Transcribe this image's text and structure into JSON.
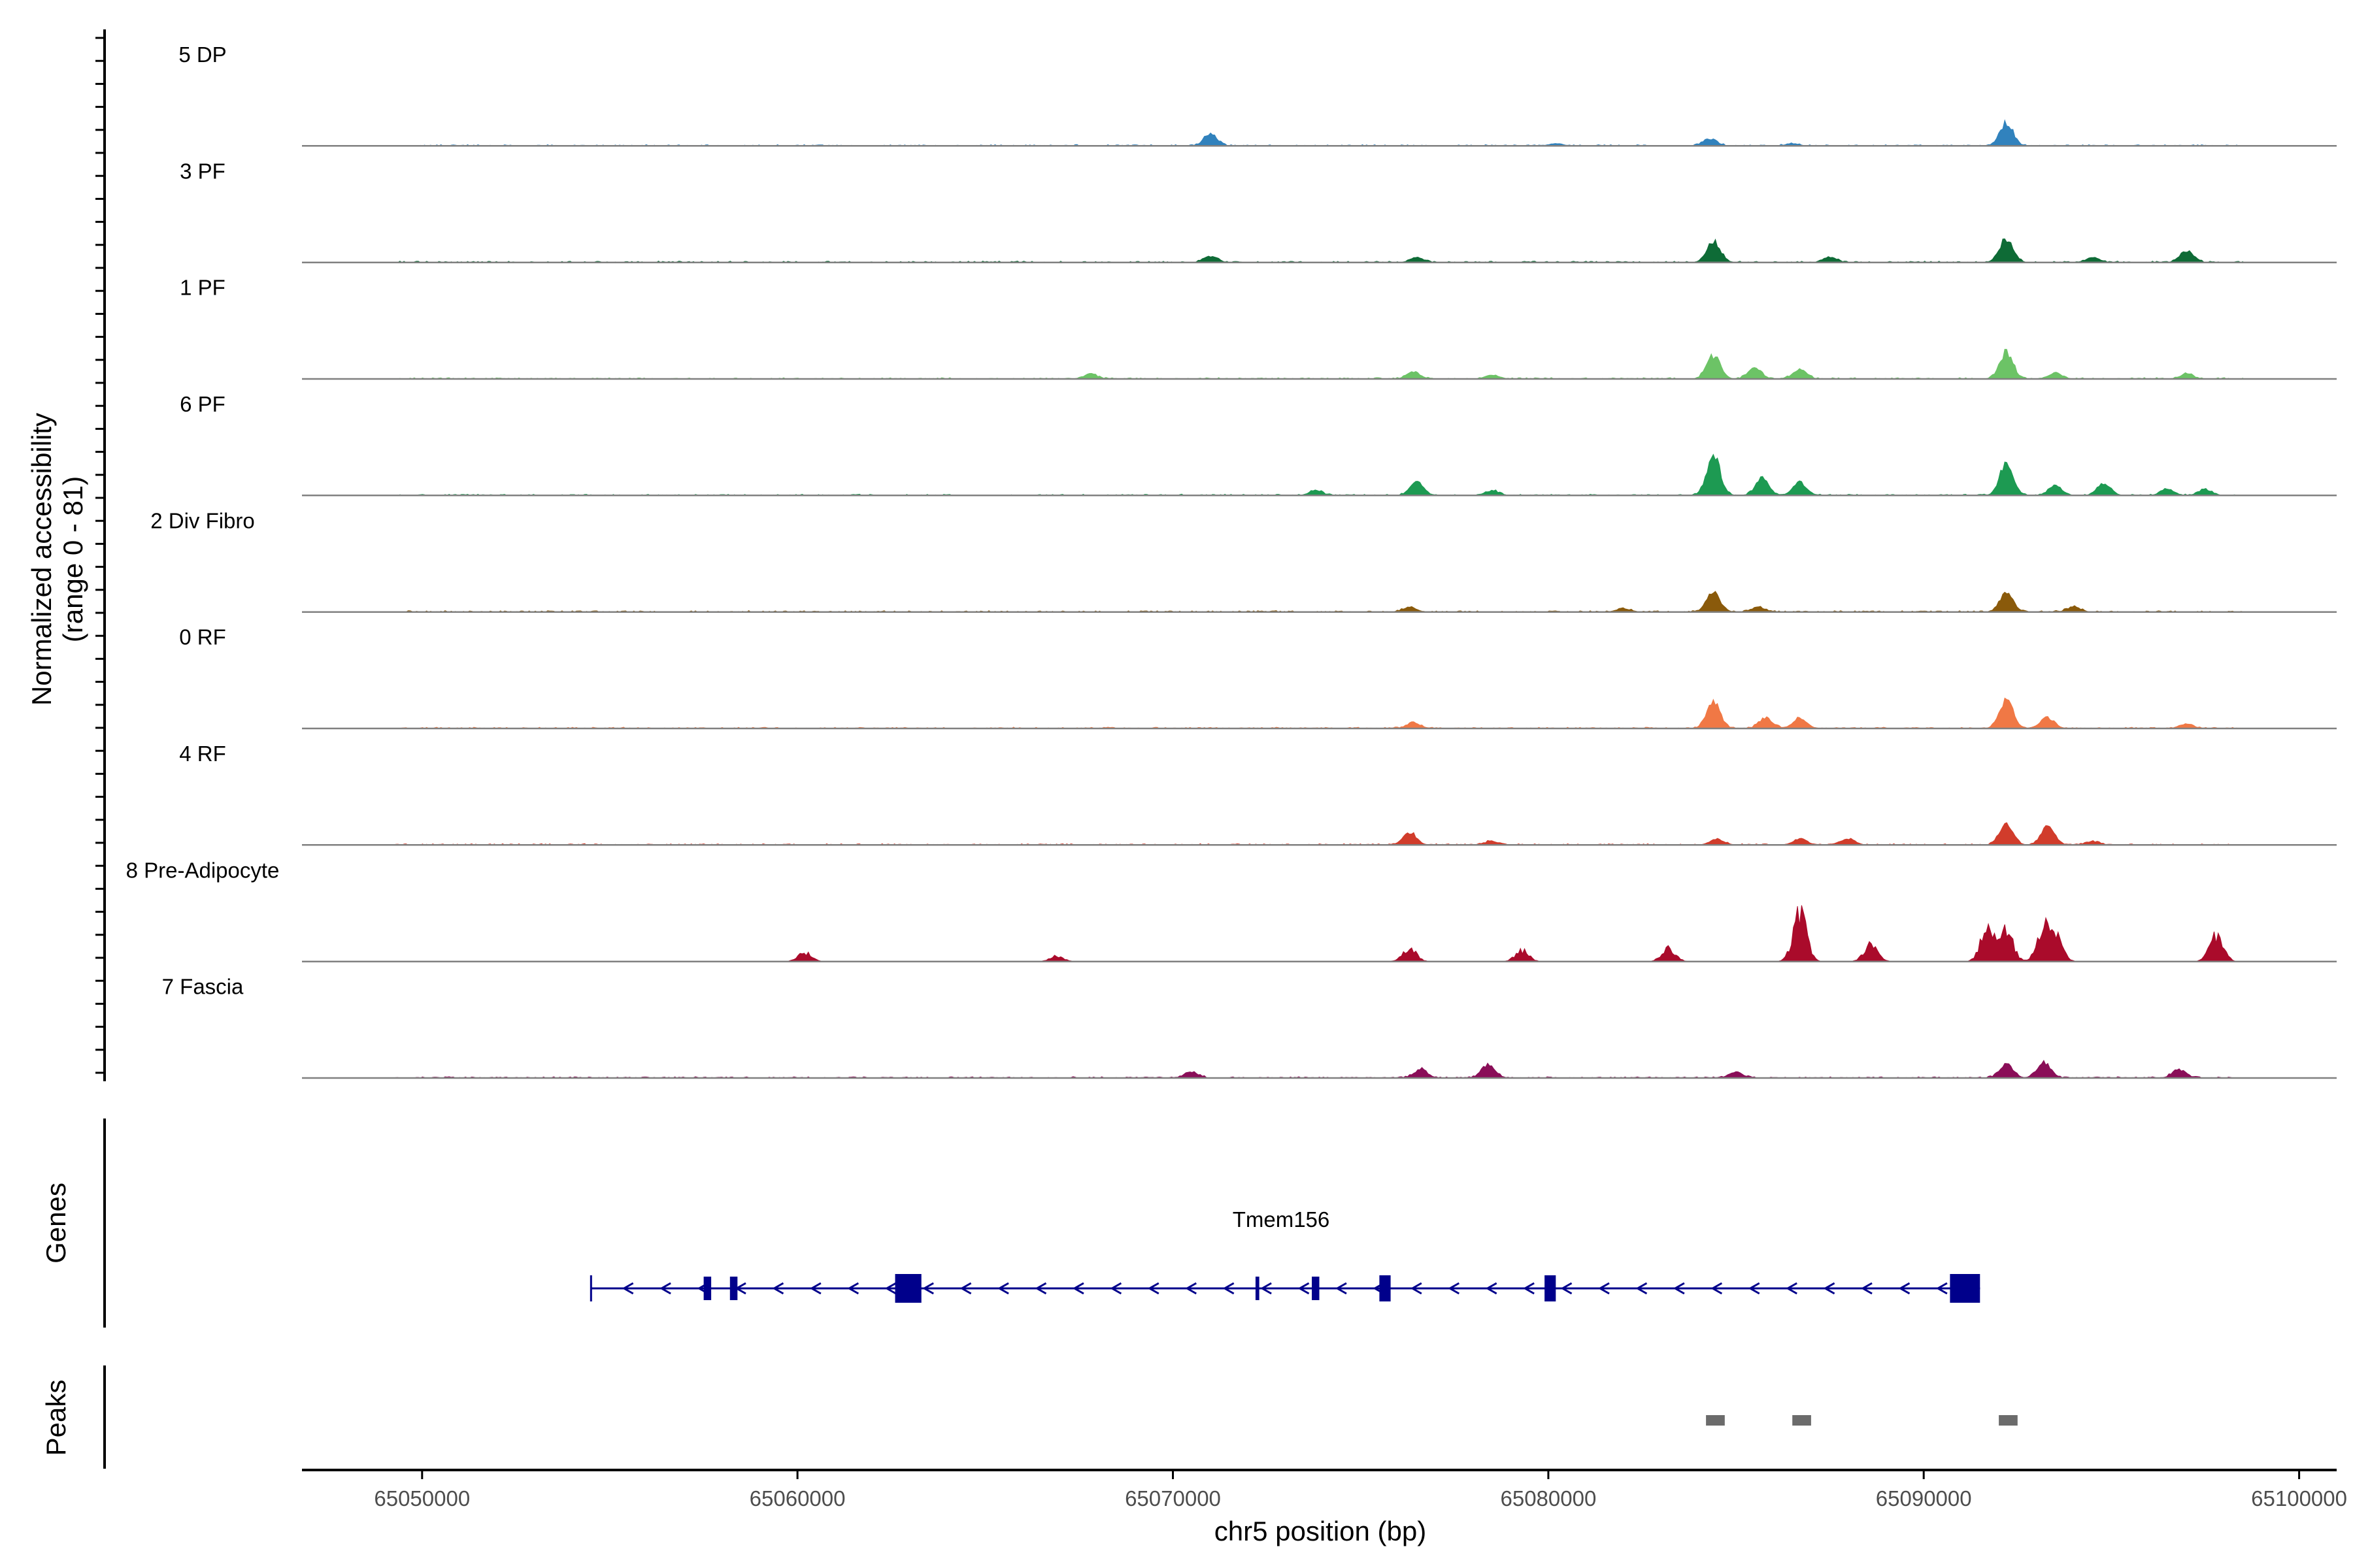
{
  "chart_data": {
    "type": "area",
    "title": "",
    "ylabel_line1": "Normalized accessibility",
    "ylabel_line2": "(range 0 - 81)",
    "xlabel": "chr5 position (bp)",
    "xlim": [
      65046800,
      65101000
    ],
    "xticks": [
      65050000,
      65060000,
      65070000,
      65080000,
      65090000,
      65100000
    ],
    "xtick_labels": [
      "65050000",
      "65060000",
      "65070000",
      "65080000",
      "65090000",
      "65100000"
    ],
    "ylim": [
      0,
      81
    ],
    "tracks": [
      {
        "name": "5 DP",
        "color": "#3182bd",
        "peaks": [
          [
            65071000,
            10
          ],
          [
            65084300,
            6
          ],
          [
            65092200,
            19
          ],
          [
            65086500,
            2
          ],
          [
            65080200,
            2
          ]
        ]
      },
      {
        "name": "3 PF",
        "color": "#0e6b36",
        "peaks": [
          [
            65084400,
            17
          ],
          [
            65092200,
            19
          ],
          [
            65097000,
            10
          ],
          [
            65071000,
            5
          ],
          [
            65076500,
            4
          ],
          [
            65087500,
            4
          ],
          [
            65094500,
            4
          ]
        ]
      },
      {
        "name": "1 PF",
        "color": "#6cc366",
        "peaks": [
          [
            65084400,
            19
          ],
          [
            65085500,
            9
          ],
          [
            65086700,
            8
          ],
          [
            65092200,
            22
          ],
          [
            65093500,
            5
          ],
          [
            65067800,
            4
          ],
          [
            65076400,
            6
          ],
          [
            65078500,
            3
          ],
          [
            65097000,
            4
          ]
        ]
      },
      {
        "name": "6 PF",
        "color": "#1d9a52",
        "peaks": [
          [
            65084400,
            33
          ],
          [
            65085700,
            14
          ],
          [
            65086700,
            11
          ],
          [
            65092200,
            26
          ],
          [
            65093500,
            8
          ],
          [
            65094800,
            10
          ],
          [
            65076500,
            11
          ],
          [
            65078500,
            4
          ],
          [
            65073800,
            4
          ],
          [
            65096500,
            5
          ],
          [
            65097500,
            5
          ]
        ]
      },
      {
        "name": "2 Div Fibro",
        "color": "#8a5a0b",
        "peaks": [
          [
            65084400,
            16
          ],
          [
            65085600,
            4
          ],
          [
            65092200,
            15
          ],
          [
            65094000,
            4
          ],
          [
            65076300,
            4
          ],
          [
            65082000,
            3
          ]
        ]
      },
      {
        "name": "0 RF",
        "color": "#f07845",
        "peaks": [
          [
            65084400,
            22
          ],
          [
            65085800,
            9
          ],
          [
            65086700,
            8
          ],
          [
            65092200,
            24
          ],
          [
            65093300,
            9
          ],
          [
            65076400,
            5
          ],
          [
            65097000,
            4
          ]
        ]
      },
      {
        "name": "4 RF",
        "color": "#d13c2b",
        "peaks": [
          [
            65076300,
            10
          ],
          [
            65086700,
            5
          ],
          [
            65088000,
            5
          ],
          [
            65092200,
            17
          ],
          [
            65093300,
            15
          ],
          [
            65084500,
            5
          ],
          [
            65094500,
            3
          ],
          [
            65078500,
            3
          ]
        ]
      },
      {
        "name": "8 Pre-Adipocyte",
        "color": "#aa0b2b",
        "peaks": [
          [
            65086700,
            43
          ],
          [
            65088600,
            16
          ],
          [
            65092200,
            27
          ],
          [
            65093200,
            28
          ],
          [
            65093500,
            25
          ],
          [
            65097800,
            24
          ],
          [
            65076300,
            12
          ],
          [
            65083200,
            12
          ],
          [
            65079300,
            10
          ],
          [
            65060200,
            8
          ],
          [
            65066900,
            5
          ],
          [
            65091700,
            30
          ]
        ]
      },
      {
        "name": "7 Fascia",
        "color": "#8a0e58",
        "peaks": [
          [
            65092200,
            12
          ],
          [
            65093200,
            13
          ],
          [
            65078400,
            11
          ],
          [
            65076600,
            7
          ],
          [
            65070500,
            5
          ],
          [
            65085000,
            5
          ],
          [
            65096800,
            7
          ]
        ]
      }
    ],
    "genes_label": "Genes",
    "gene": {
      "name": "Tmem156",
      "start": 65054500,
      "end": 65091500,
      "strand": "-",
      "color": "#00008b",
      "exons": [
        [
          65062600,
          65063300
        ],
        [
          65090700,
          65091500
        ],
        [
          65057500,
          65057700
        ],
        [
          65058200,
          65058400
        ],
        [
          65072200,
          65072300
        ],
        [
          65073700,
          65073900
        ],
        [
          65075500,
          65075800
        ],
        [
          65079900,
          65080200
        ]
      ]
    },
    "peaks_label": "Peaks",
    "peak_regions": [
      [
        65084200,
        65084700
      ],
      [
        65086500,
        65087000
      ],
      [
        65092000,
        65092500
      ]
    ],
    "peak_color": "#6b6b6b"
  }
}
